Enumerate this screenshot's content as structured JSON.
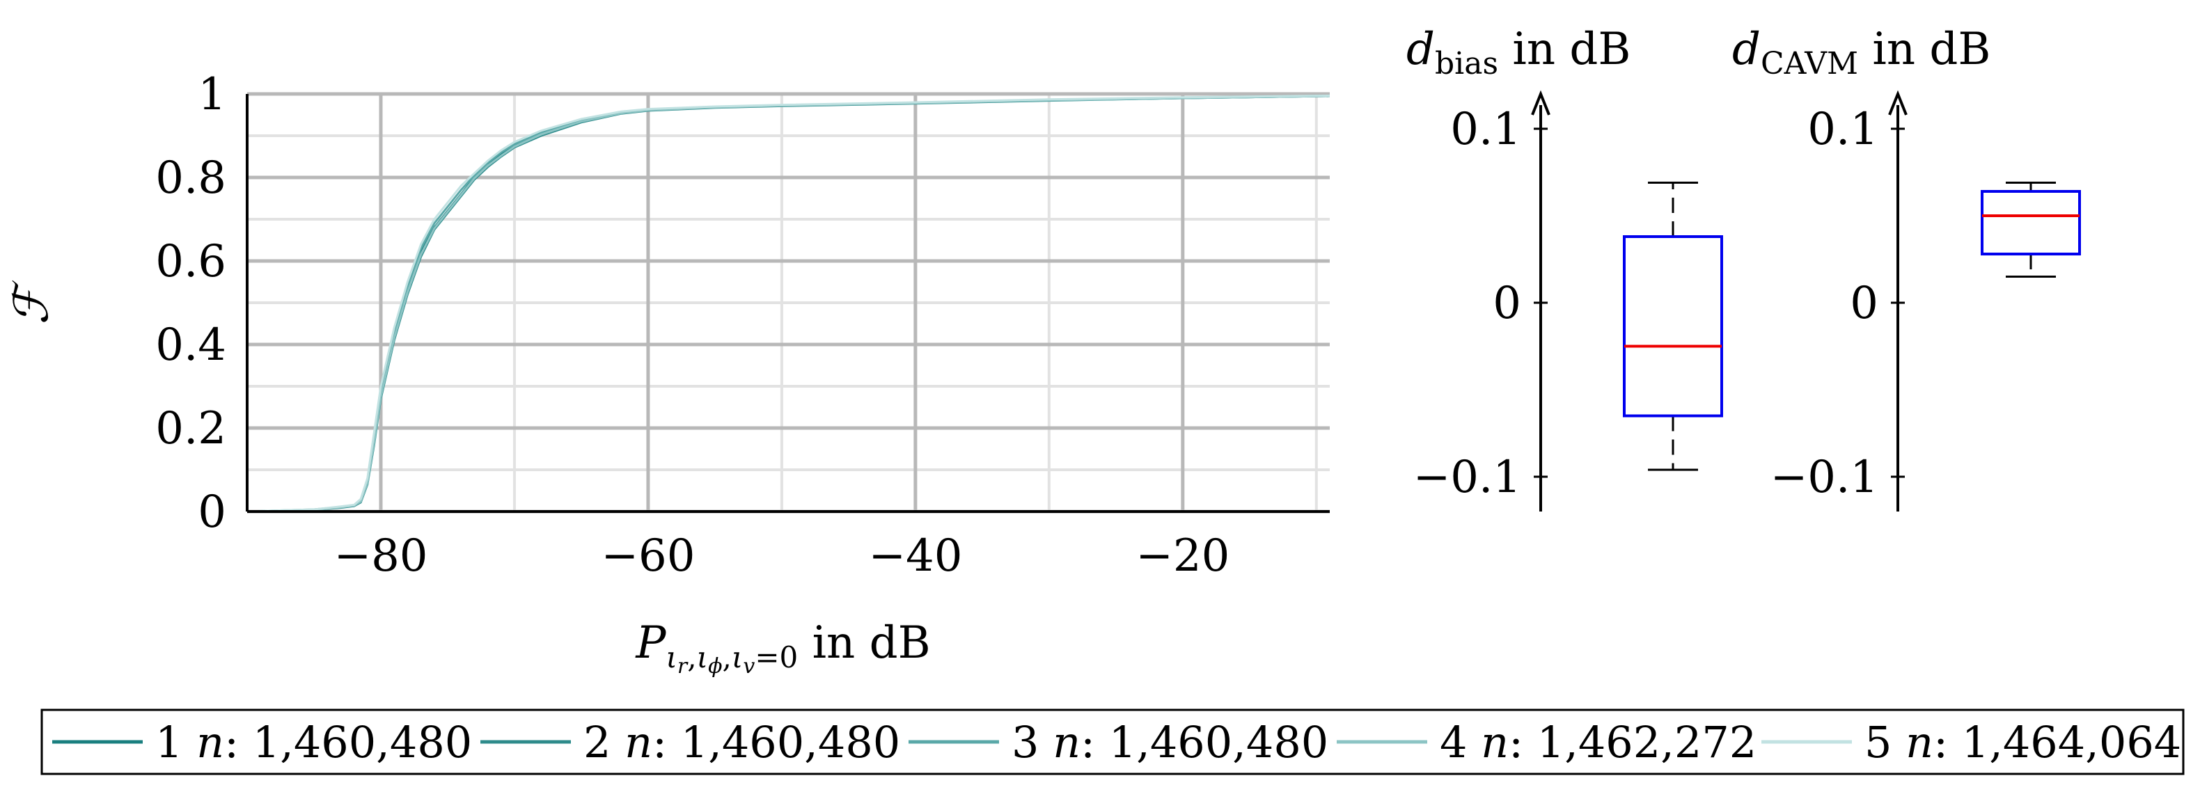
{
  "chart_data": [
    {
      "type": "line",
      "ylabel_symbol": "ℱ",
      "xlabel": {
        "base": "P",
        "sub1": "ι",
        "sub1sub": "r",
        "comma1": ",",
        "sub2": "ι",
        "sub2sub": "ϕ",
        "comma2": ",",
        "sub3": "ι",
        "sub3sub": "v",
        "sub_tail": "=0",
        "unit": " in dB"
      },
      "xlim": [
        -90,
        -9
      ],
      "ylim": [
        0,
        1
      ],
      "xticks": [
        -80,
        -60,
        -40,
        -20
      ],
      "xtick_labels": [
        "−80",
        "−60",
        "−40",
        "−20"
      ],
      "yticks": [
        0,
        0.2,
        0.4,
        0.6,
        0.8,
        1
      ],
      "ytick_labels": [
        "0",
        "0.2",
        "0.4",
        "0.6",
        "0.8",
        "1"
      ],
      "grid": true,
      "series": [
        {
          "name": "1",
          "n_label": "n",
          "n_value": ": 1,460,480",
          "color": "#1a7f7f",
          "x": [
            -90,
            -85,
            -83,
            -82,
            -81.5,
            -81,
            -80.5,
            -80,
            -79,
            -78,
            -77,
            -76,
            -75,
            -74,
            -73,
            -72,
            -71,
            -70,
            -68,
            -65,
            -62,
            -60,
            -55,
            -50,
            -40,
            -30,
            -20,
            -9
          ],
          "y": [
            0,
            0.004,
            0.01,
            0.014,
            0.025,
            0.07,
            0.17,
            0.28,
            0.42,
            0.53,
            0.62,
            0.68,
            0.72,
            0.76,
            0.8,
            0.83,
            0.855,
            0.875,
            0.905,
            0.935,
            0.955,
            0.962,
            0.968,
            0.972,
            0.978,
            0.985,
            0.99,
            0.995
          ]
        },
        {
          "name": "2",
          "n_label": "n",
          "n_value": ": 1,460,480",
          "color": "#2e8b8b",
          "x": [
            -90,
            -85,
            -83,
            -82,
            -81.5,
            -81,
            -80.5,
            -80,
            -79,
            -78,
            -77,
            -76,
            -75,
            -74,
            -73,
            -72,
            -71,
            -70,
            -68,
            -65,
            -62,
            -60,
            -55,
            -50,
            -40,
            -30,
            -20,
            -9
          ],
          "y": [
            0,
            0.004,
            0.009,
            0.013,
            0.022,
            0.065,
            0.16,
            0.27,
            0.41,
            0.52,
            0.61,
            0.675,
            0.715,
            0.755,
            0.795,
            0.825,
            0.85,
            0.872,
            0.9,
            0.932,
            0.953,
            0.96,
            0.967,
            0.971,
            0.977,
            0.984,
            0.99,
            0.995
          ]
        },
        {
          "name": "3",
          "n_label": "n",
          "n_value": ": 1,460,480",
          "color": "#5aa8a8",
          "x": [
            -90,
            -85,
            -83,
            -82,
            -81.5,
            -81,
            -80.5,
            -80,
            -79,
            -78,
            -77,
            -76,
            -75,
            -74,
            -73,
            -72,
            -71,
            -70,
            -68,
            -65,
            -62,
            -60,
            -55,
            -50,
            -40,
            -30,
            -20,
            -9
          ],
          "y": [
            0,
            0.005,
            0.011,
            0.015,
            0.028,
            0.075,
            0.18,
            0.29,
            0.43,
            0.54,
            0.63,
            0.69,
            0.73,
            0.77,
            0.805,
            0.835,
            0.86,
            0.88,
            0.908,
            0.938,
            0.957,
            0.963,
            0.969,
            0.973,
            0.979,
            0.986,
            0.991,
            0.996
          ]
        },
        {
          "name": "4",
          "n_label": "n",
          "n_value": ": 1,462,272",
          "color": "#8cc4c4",
          "x": [
            -90,
            -85,
            -83,
            -82,
            -81.5,
            -81,
            -80.5,
            -80,
            -79,
            -78,
            -77,
            -76,
            -75,
            -74,
            -73,
            -72,
            -71,
            -70,
            -68,
            -65,
            -62,
            -60,
            -55,
            -50,
            -40,
            -30,
            -20,
            -9
          ],
          "y": [
            0,
            0.004,
            0.01,
            0.014,
            0.024,
            0.068,
            0.165,
            0.275,
            0.415,
            0.525,
            0.615,
            0.678,
            0.718,
            0.758,
            0.798,
            0.828,
            0.852,
            0.874,
            0.903,
            0.934,
            0.954,
            0.961,
            0.968,
            0.972,
            0.978,
            0.985,
            0.99,
            0.995
          ]
        },
        {
          "name": "5",
          "n_label": "n",
          "n_value": ": 1,464,064",
          "color": "#c2e2e2",
          "x": [
            -90,
            -85,
            -83,
            -82,
            -81.5,
            -81,
            -80.5,
            -80,
            -79,
            -78,
            -77,
            -76,
            -75,
            -74,
            -73,
            -72,
            -71,
            -70,
            -68,
            -65,
            -62,
            -60,
            -55,
            -50,
            -40,
            -30,
            -20,
            -9
          ],
          "y": [
            0,
            0.005,
            0.012,
            0.016,
            0.03,
            0.08,
            0.19,
            0.3,
            0.44,
            0.55,
            0.64,
            0.7,
            0.74,
            0.78,
            0.81,
            0.84,
            0.865,
            0.885,
            0.912,
            0.94,
            0.958,
            0.964,
            0.97,
            0.974,
            0.98,
            0.987,
            0.992,
            0.996
          ]
        }
      ],
      "legend_placement": "bottom"
    },
    {
      "type": "box",
      "title": {
        "var": "d",
        "sub": "bias",
        "unit": " in dB"
      },
      "ylim": [
        -0.12,
        0.12
      ],
      "yticks": [
        -0.1,
        0,
        0.1
      ],
      "ytick_labels": [
        "−0.1",
        "0",
        "0.1"
      ],
      "min": -0.096,
      "q1": -0.065,
      "median": -0.025,
      "q3": 0.038,
      "max": 0.069,
      "box_color": "#0000ee",
      "median_color": "#ee0000"
    },
    {
      "type": "box",
      "title": {
        "var": "d",
        "sub": "CAVM",
        "unit": " in dB"
      },
      "ylim": [
        -0.12,
        0.12
      ],
      "yticks": [
        -0.1,
        0,
        0.1
      ],
      "ytick_labels": [
        "−0.1",
        "0",
        "0.1"
      ],
      "min": 0.015,
      "q1": 0.028,
      "median": 0.05,
      "q3": 0.064,
      "max": 0.069,
      "box_color": "#0000ee",
      "median_color": "#ee0000"
    }
  ]
}
